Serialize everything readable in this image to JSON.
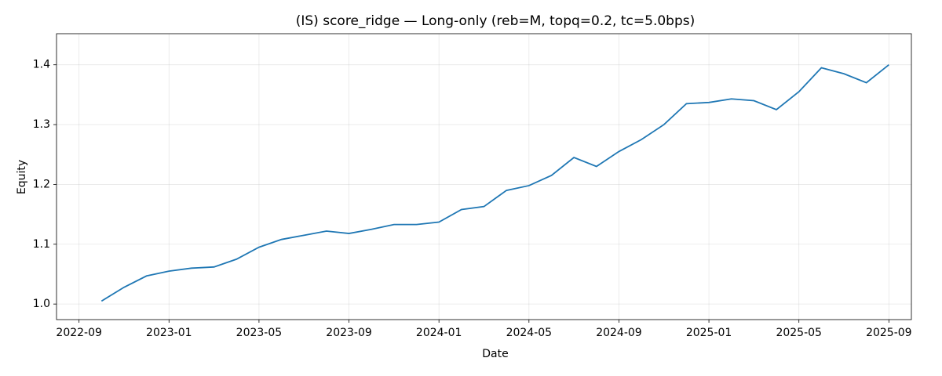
{
  "chart_data": {
    "type": "line",
    "title": "(IS) score_ridge — Long-only (reb=M, topq=0.2, tc=5.0bps)",
    "x_label": "Date",
    "y_label": "Equity",
    "x": [
      "2022-10",
      "2022-11",
      "2022-12",
      "2023-01",
      "2023-02",
      "2023-03",
      "2023-04",
      "2023-05",
      "2023-06",
      "2023-07",
      "2023-08",
      "2023-09",
      "2023-10",
      "2023-11",
      "2023-12",
      "2024-01",
      "2024-02",
      "2024-03",
      "2024-04",
      "2024-05",
      "2024-06",
      "2024-07",
      "2024-08",
      "2024-09",
      "2024-10",
      "2024-11",
      "2024-12",
      "2025-01",
      "2025-02",
      "2025-03",
      "2025-04",
      "2025-05",
      "2025-06",
      "2025-07",
      "2025-08",
      "2025-09"
    ],
    "series": [
      {
        "color": "#1f77b4",
        "values": [
          1.005,
          1.028,
          1.047,
          1.055,
          1.06,
          1.062,
          1.075,
          1.095,
          1.108,
          1.115,
          1.122,
          1.118,
          1.125,
          1.133,
          1.133,
          1.137,
          1.158,
          1.163,
          1.19,
          1.198,
          1.215,
          1.245,
          1.23,
          1.255,
          1.275,
          1.3,
          1.335,
          1.337,
          1.343,
          1.34,
          1.325,
          1.355,
          1.395,
          1.385,
          1.37,
          1.4
        ]
      }
    ],
    "xlim": [
      "2022-08",
      "2025-10"
    ],
    "xticks": [
      "2022-09",
      "2023-01",
      "2023-05",
      "2023-09",
      "2024-01",
      "2024-05",
      "2024-09",
      "2025-01",
      "2025-05",
      "2025-09"
    ],
    "ylim": [
      0.974,
      1.452
    ],
    "yticks": [
      {
        "value": 1,
        "label": "1.0"
      },
      1.1,
      1.2,
      1.3,
      1.4
    ],
    "grid": true
  }
}
